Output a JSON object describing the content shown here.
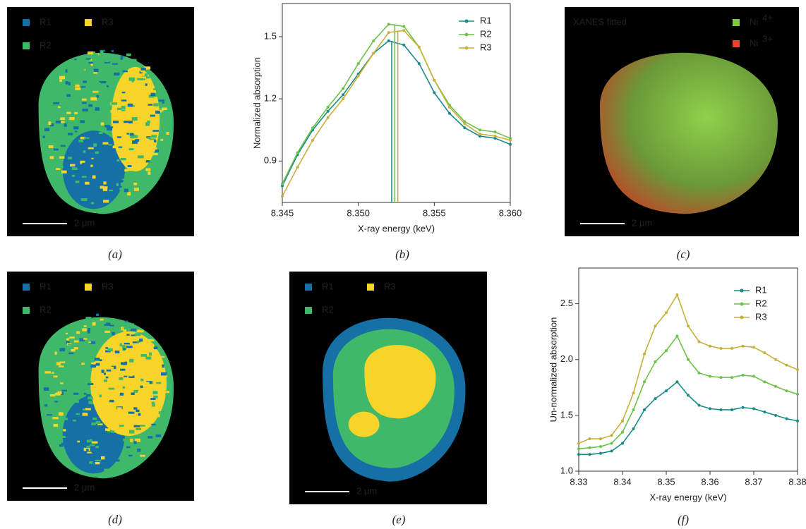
{
  "panels": [
    {
      "caption": "(a)",
      "kind": "map-mixed",
      "legend": [
        {
          "name": "R1",
          "color": "#1570a6"
        },
        {
          "name": "R3",
          "color": "#f7d42a"
        },
        {
          "name": "R2",
          "color": "#3fb86a"
        }
      ],
      "scale_bar": "2 μm"
    },
    {
      "caption": "(c)",
      "kind": "xanes",
      "title": "XANES fitted",
      "legend": [
        {
          "name": "Ni",
          "sup": "4+",
          "color": "#7ccc3c"
        },
        {
          "name": "Ni",
          "sup": "3+",
          "color": "#e8452a"
        }
      ],
      "scale_bar": "2 μm"
    },
    {
      "caption": "(d)",
      "kind": "map-split",
      "legend": [
        {
          "name": "R1",
          "color": "#1570a6"
        },
        {
          "name": "R3",
          "color": "#f7d42a"
        },
        {
          "name": "R2",
          "color": "#3fb86a"
        }
      ],
      "scale_bar": "2 μm"
    },
    {
      "caption": "(e)",
      "kind": "map-shell",
      "legend": [
        {
          "name": "R1",
          "color": "#1570a6"
        },
        {
          "name": "R3",
          "color": "#f7d42a"
        },
        {
          "name": "R2",
          "color": "#3fb86a"
        }
      ],
      "scale_bar": "2 μm"
    }
  ],
  "chart_data": [
    {
      "type": "line",
      "caption": "(b)",
      "xlabel": "X-ray energy (keV)",
      "ylabel": "Normalized absorption",
      "x": [
        8.345,
        8.346,
        8.347,
        8.348,
        8.349,
        8.35,
        8.351,
        8.352,
        8.353,
        8.354,
        8.355,
        8.356,
        8.357,
        8.358,
        8.359,
        8.36
      ],
      "series": [
        {
          "name": "R1",
          "color": "#1a8a8a",
          "peak_x": 8.3522,
          "values": [
            0.78,
            0.93,
            1.05,
            1.14,
            1.22,
            1.32,
            1.42,
            1.48,
            1.46,
            1.37,
            1.23,
            1.13,
            1.06,
            1.02,
            1.01,
            0.98
          ]
        },
        {
          "name": "R2",
          "color": "#6cc24a",
          "peak_x": 8.3524,
          "values": [
            0.79,
            0.94,
            1.06,
            1.16,
            1.25,
            1.37,
            1.48,
            1.56,
            1.55,
            1.45,
            1.29,
            1.17,
            1.09,
            1.05,
            1.04,
            1.01
          ]
        },
        {
          "name": "R3",
          "color": "#c8b03c",
          "peak_x": 8.3526,
          "values": [
            0.73,
            0.87,
            1.0,
            1.11,
            1.2,
            1.31,
            1.42,
            1.52,
            1.53,
            1.45,
            1.29,
            1.16,
            1.08,
            1.03,
            1.02,
            1.0
          ]
        }
      ],
      "xlim": [
        8.345,
        8.36
      ],
      "ylim": [
        0.7,
        1.66
      ],
      "xticks": [
        8.345,
        {
          "value": 8.35,
          "label": "8.350"
        },
        8.355,
        {
          "value": 8.36,
          "label": "8.360"
        }
      ],
      "yticks": [
        0.9,
        1.2,
        1.5
      ],
      "legend": "upper right"
    },
    {
      "type": "line",
      "caption": "(f)",
      "xlabel": "X-ray energy (keV)",
      "ylabel": "Un-normalized absorption",
      "x": [
        8.33,
        8.3325,
        8.335,
        8.3375,
        8.34,
        8.3425,
        8.345,
        8.3475,
        8.35,
        8.3525,
        8.355,
        8.3575,
        8.36,
        8.3625,
        8.365,
        8.3675,
        8.37,
        8.3725,
        8.375,
        8.3775,
        8.38
      ],
      "series": [
        {
          "name": "R1",
          "color": "#1a8a8a",
          "values": [
            1.15,
            1.15,
            1.16,
            1.18,
            1.25,
            1.38,
            1.55,
            1.65,
            1.72,
            1.8,
            1.68,
            1.59,
            1.56,
            1.55,
            1.55,
            1.57,
            1.56,
            1.53,
            1.5,
            1.47,
            1.45
          ]
        },
        {
          "name": "R2",
          "color": "#6cc24a",
          "values": [
            1.2,
            1.21,
            1.22,
            1.25,
            1.35,
            1.55,
            1.8,
            1.98,
            2.08,
            2.21,
            2.0,
            1.88,
            1.85,
            1.84,
            1.84,
            1.86,
            1.85,
            1.8,
            1.76,
            1.72,
            1.69
          ]
        },
        {
          "name": "R3",
          "color": "#c8b03c",
          "values": [
            1.25,
            1.29,
            1.29,
            1.32,
            1.45,
            1.7,
            2.05,
            2.3,
            2.42,
            2.58,
            2.3,
            2.16,
            2.12,
            2.1,
            2.1,
            2.12,
            2.11,
            2.06,
            2.0,
            1.95,
            1.91
          ]
        }
      ],
      "xlim": [
        8.33,
        8.38
      ],
      "ylim": [
        1.0,
        2.82
      ],
      "xticks": [
        8.33,
        8.34,
        8.35,
        8.36,
        8.37,
        8.38
      ],
      "yticks": [
        {
          "value": 1.0,
          "label": "1.0"
        },
        1.5,
        {
          "value": 2.0,
          "label": "2.0"
        },
        2.5
      ],
      "legend": "upper right"
    }
  ]
}
